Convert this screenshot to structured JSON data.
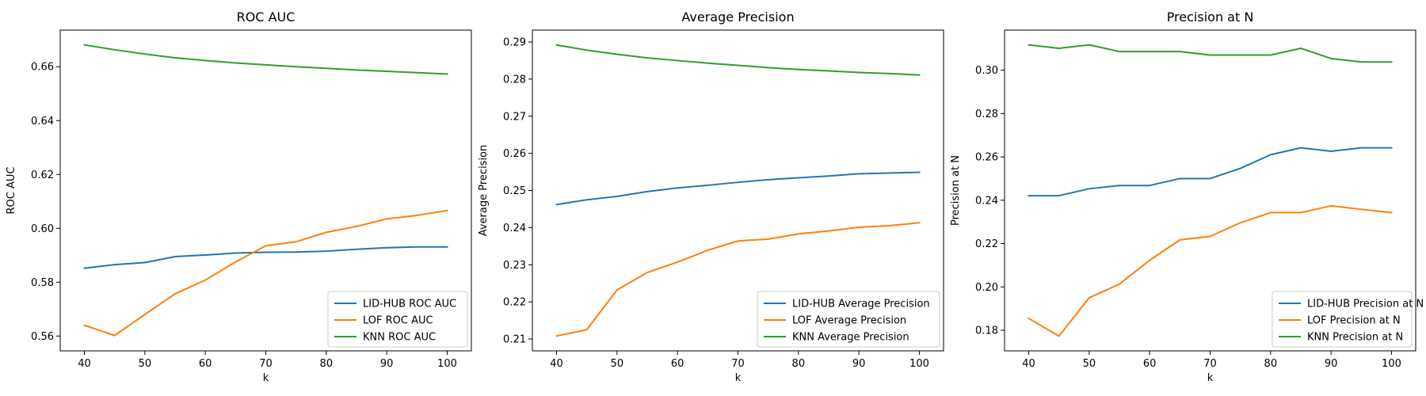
{
  "chart_data": [
    {
      "type": "line",
      "title": "ROC AUC",
      "xlabel": "k",
      "ylabel": "ROC AUC",
      "x": [
        40,
        45,
        50,
        55,
        60,
        65,
        70,
        75,
        80,
        85,
        90,
        95,
        100
      ],
      "xlim": [
        36,
        104
      ],
      "ylim": [
        0.5545,
        0.6736
      ],
      "xticks": [
        40,
        50,
        60,
        70,
        80,
        90,
        100
      ],
      "xtick_labels": [
        "40",
        "50",
        "60",
        "70",
        "80",
        "90",
        "100"
      ],
      "yticks": [
        0.56,
        0.58,
        0.6,
        0.62,
        0.64,
        0.66
      ],
      "ytick_labels": [
        "0.56",
        "0.58",
        "0.60",
        "0.62",
        "0.64",
        "0.66"
      ],
      "legend_position": "lower right",
      "grid": false,
      "series": [
        {
          "name": "LID-HUB ROC AUC",
          "color": "#1f77b4",
          "values": [
            0.5852,
            0.5865,
            0.5873,
            0.5895,
            0.5901,
            0.5908,
            0.5911,
            0.5912,
            0.5915,
            0.5922,
            0.5928,
            0.5931,
            0.5931
          ]
        },
        {
          "name": "LOF ROC AUC",
          "color": "#ff7f0e",
          "values": [
            0.564,
            0.5602,
            0.568,
            0.5757,
            0.5808,
            0.5875,
            0.5935,
            0.595,
            0.5985,
            0.6007,
            0.6035,
            0.6048,
            0.6066
          ]
        },
        {
          "name": "KNN ROC AUC",
          "color": "#2ca02c",
          "values": [
            0.6681,
            0.6663,
            0.6647,
            0.6633,
            0.6623,
            0.6614,
            0.6607,
            0.66,
            0.6594,
            0.6588,
            0.6583,
            0.6578,
            0.6573
          ]
        }
      ]
    },
    {
      "type": "line",
      "title": "Average Precision",
      "xlabel": "k",
      "ylabel": "Average Precision",
      "x": [
        40,
        45,
        50,
        55,
        60,
        65,
        70,
        75,
        80,
        85,
        90,
        95,
        100
      ],
      "xlim": [
        36,
        104
      ],
      "ylim": [
        0.2068,
        0.2932
      ],
      "xticks": [
        40,
        50,
        60,
        70,
        80,
        90,
        100
      ],
      "xtick_labels": [
        "40",
        "50",
        "60",
        "70",
        "80",
        "90",
        "100"
      ],
      "yticks": [
        0.21,
        0.22,
        0.23,
        0.24,
        0.25,
        0.26,
        0.27,
        0.28,
        0.29
      ],
      "ytick_labels": [
        "0.21",
        "0.22",
        "0.23",
        "0.24",
        "0.25",
        "0.26",
        "0.27",
        "0.28",
        "0.29"
      ],
      "legend_position": "lower right",
      "grid": false,
      "series": [
        {
          "name": "LID-HUB Average Precision",
          "color": "#1f77b4",
          "values": [
            0.2462,
            0.2475,
            0.2484,
            0.2497,
            0.2507,
            0.2514,
            0.2522,
            0.2529,
            0.2534,
            0.2539,
            0.2545,
            0.2547,
            0.2549
          ]
        },
        {
          "name": "LOF Average Precision",
          "color": "#ff7f0e",
          "values": [
            0.2108,
            0.2125,
            0.2232,
            0.2279,
            0.2307,
            0.2339,
            0.2364,
            0.2369,
            0.2383,
            0.2391,
            0.2401,
            0.2405,
            0.2413
          ]
        },
        {
          "name": "KNN Average Precision",
          "color": "#2ca02c",
          "values": [
            0.2892,
            0.2878,
            0.2867,
            0.2857,
            0.285,
            0.2843,
            0.2837,
            0.2831,
            0.2826,
            0.2822,
            0.2818,
            0.2815,
            0.2811
          ]
        }
      ]
    },
    {
      "type": "line",
      "title": "Precision at N",
      "xlabel": "k",
      "ylabel": "Precision at N",
      "x": [
        40,
        45,
        50,
        55,
        60,
        65,
        70,
        75,
        80,
        85,
        90,
        95,
        100
      ],
      "xlim": [
        36,
        104
      ],
      "ylim": [
        0.1705,
        0.3185
      ],
      "xticks": [
        40,
        50,
        60,
        70,
        80,
        90,
        100
      ],
      "xtick_labels": [
        "40",
        "50",
        "60",
        "70",
        "80",
        "90",
        "100"
      ],
      "yticks": [
        0.18,
        0.2,
        0.22,
        0.24,
        0.26,
        0.28,
        0.3
      ],
      "ytick_labels": [
        "0.18",
        "0.20",
        "0.22",
        "0.24",
        "0.26",
        "0.28",
        "0.30"
      ],
      "legend_position": "lower right",
      "grid": false,
      "series": [
        {
          "name": "LID-HUB Precision at N",
          "color": "#1f77b4",
          "values": [
            0.2421,
            0.2421,
            0.2453,
            0.2468,
            0.2468,
            0.25,
            0.25,
            0.2547,
            0.261,
            0.2642,
            0.2626,
            0.2642,
            0.2642
          ]
        },
        {
          "name": "LOF Precision at N",
          "color": "#ff7f0e",
          "values": [
            0.1855,
            0.1773,
            0.195,
            0.2013,
            0.2123,
            0.2217,
            0.2233,
            0.2296,
            0.2343,
            0.2343,
            0.2374,
            0.2358,
            0.2343
          ]
        },
        {
          "name": "KNN Precision at N",
          "color": "#2ca02c",
          "values": [
            0.3117,
            0.3101,
            0.3117,
            0.3086,
            0.3086,
            0.3086,
            0.307,
            0.307,
            0.307,
            0.3101,
            0.3054,
            0.3038,
            0.3038
          ]
        }
      ]
    }
  ]
}
